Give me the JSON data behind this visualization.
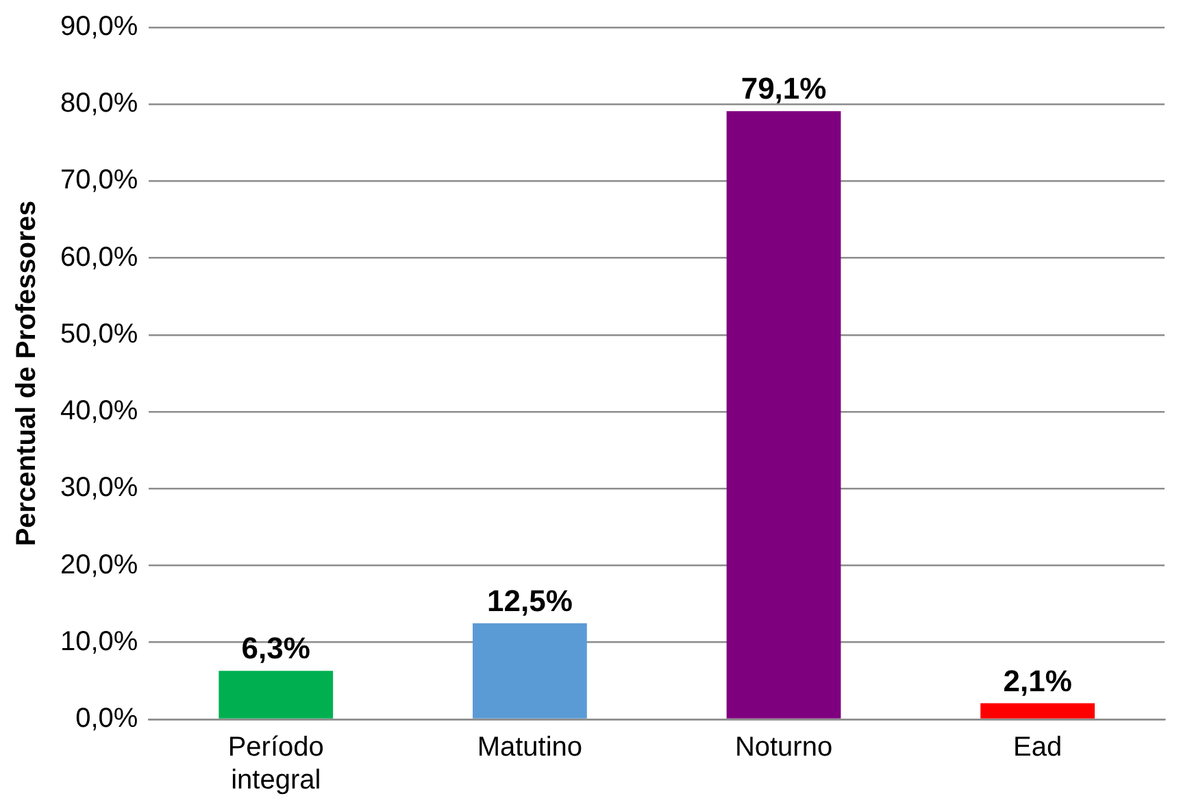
{
  "chart_data": {
    "type": "bar",
    "ylabel": "Percentual de Professores",
    "categories": [
      "Período integral",
      "Matutino",
      "Noturno",
      "Ead"
    ],
    "values": [
      6.3,
      12.5,
      79.1,
      2.1
    ],
    "colors": [
      "#00b050",
      "#5b9bd5",
      "#7f007f",
      "#ff0000"
    ],
    "value_labels": [
      "6,3%",
      "12,5%",
      "79,1%",
      "2,1%"
    ],
    "ylim": [
      0,
      90
    ],
    "yticks": [
      {
        "value": 0,
        "label": "0,0%"
      },
      {
        "value": 10,
        "label": "10,0%"
      },
      {
        "value": 20,
        "label": "20,0%"
      },
      {
        "value": 30,
        "label": "30,0%"
      },
      {
        "value": 40,
        "label": "40,0%"
      },
      {
        "value": 50,
        "label": "50,0%"
      },
      {
        "value": 60,
        "label": "60,0%"
      },
      {
        "value": 70,
        "label": "70,0%"
      },
      {
        "value": 80,
        "label": "80,0%"
      },
      {
        "value": 90,
        "label": "90,0%"
      }
    ],
    "grid": "y",
    "legend": false
  }
}
